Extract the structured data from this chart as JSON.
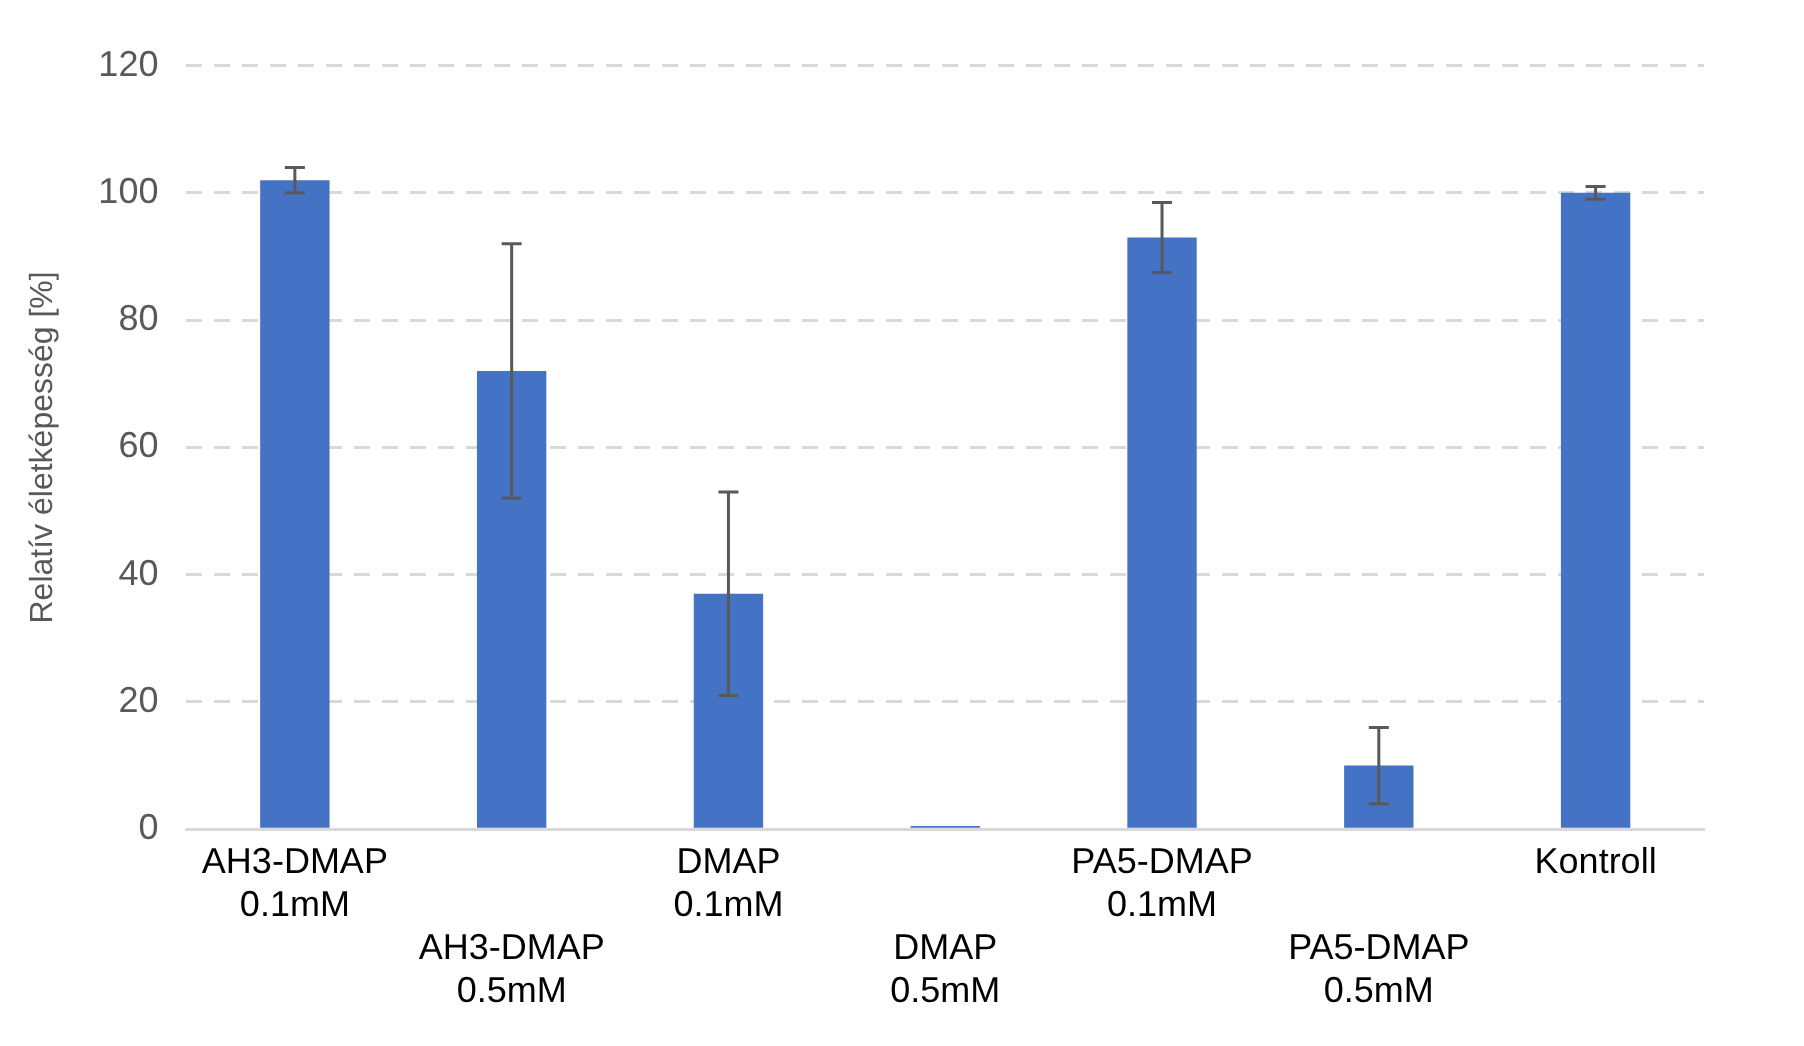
{
  "chart_data": {
    "type": "bar",
    "ylabel": "Relatív életképesség [%]",
    "categories": [
      "AH3-DMAP 0.1mM",
      "AH3-DMAP 0.5mM",
      "DMAP 0.1mM",
      "DMAP 0.5mM",
      "PA5-DMAP 0.1mM",
      "PA5-DMAP 0.5mM",
      "Kontroll"
    ],
    "values": [
      102,
      72,
      37,
      0.5,
      93,
      10,
      100
    ],
    "errors": [
      2,
      20,
      16,
      null,
      5.5,
      6,
      1
    ],
    "color": "#4472c4",
    "ylim": [
      0,
      120
    ],
    "yticks": [
      0,
      20,
      40,
      60,
      80,
      100,
      120
    ],
    "grid": "y",
    "legend": false
  }
}
